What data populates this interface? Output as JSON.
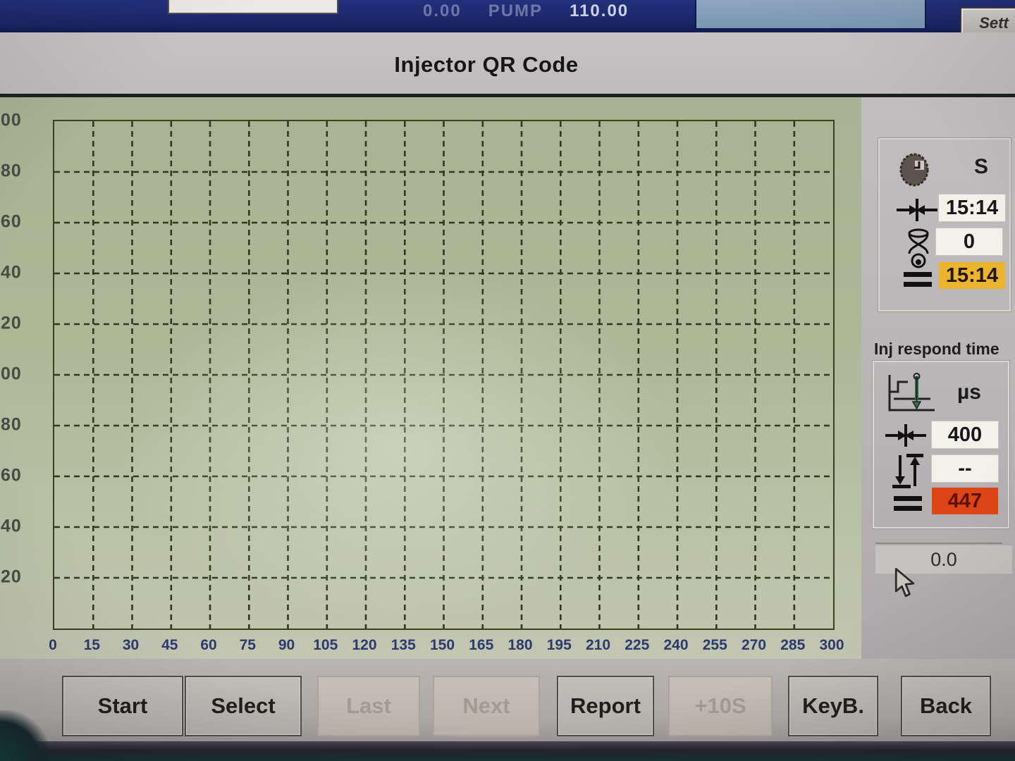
{
  "top_bar": {
    "fragments": [
      "0.00",
      "PUMP",
      "110.00"
    ],
    "settings_button_label": "Sett"
  },
  "title": "Injector QR Code",
  "chart_data": {
    "type": "line",
    "title": "",
    "xlabel": "",
    "ylabel": "",
    "x_ticks": [
      "0",
      "15",
      "30",
      "45",
      "60",
      "75",
      "90",
      "105",
      "120",
      "135",
      "150",
      "165",
      "180",
      "195",
      "210",
      "225",
      "240",
      "255",
      "270",
      "285",
      "300"
    ],
    "x_range": [
      0,
      300
    ],
    "y_tick_labels_visible": [
      "00",
      "80",
      "60",
      "40",
      "20",
      "00",
      "80",
      "60",
      "40",
      "20"
    ],
    "grid": "dashed",
    "legend_position": "none",
    "series": [],
    "note": "empty grid, no trace plotted"
  },
  "timer_panel": {
    "unit_label": "S",
    "rows": [
      {
        "icon": "range-set-icon",
        "value": "15:14",
        "style": "white"
      },
      {
        "icon": "hourglass-icon",
        "value": "0",
        "style": "white"
      },
      {
        "icon": "equals-icon",
        "value": "15:14",
        "style": "yellow"
      }
    ]
  },
  "inj_panel": {
    "title": "Inj respond time",
    "unit_label": "µs",
    "rows": [
      {
        "icon": "range-set-icon",
        "value": "400",
        "style": "white"
      },
      {
        "icon": "rise-fall-icon",
        "value": "--",
        "style": "white"
      },
      {
        "icon": "equals-icon",
        "value": "447",
        "style": "red"
      }
    ]
  },
  "extra_readout": {
    "value": "0.0"
  },
  "footer_buttons": [
    {
      "label": "Start",
      "enabled": true
    },
    {
      "label": "Select",
      "enabled": true
    },
    {
      "label": "Last",
      "enabled": false
    },
    {
      "label": "Next",
      "enabled": false
    },
    {
      "label": "Report",
      "enabled": true
    },
    {
      "label": "+10S",
      "enabled": false
    },
    {
      "label": "KeyB.",
      "enabled": true
    },
    {
      "label": "Back",
      "enabled": true
    }
  ],
  "colors": {
    "navy_bar": "#1d2a6b",
    "chart_green": "#aeb897",
    "grid_line": "#2e3a1e",
    "x_label": "#2c3a6e",
    "value_box_white": "#f3f1ea",
    "value_box_yellow": "#eab42f",
    "value_box_red": "#dd4517",
    "disabled_text": "#a19b90"
  }
}
